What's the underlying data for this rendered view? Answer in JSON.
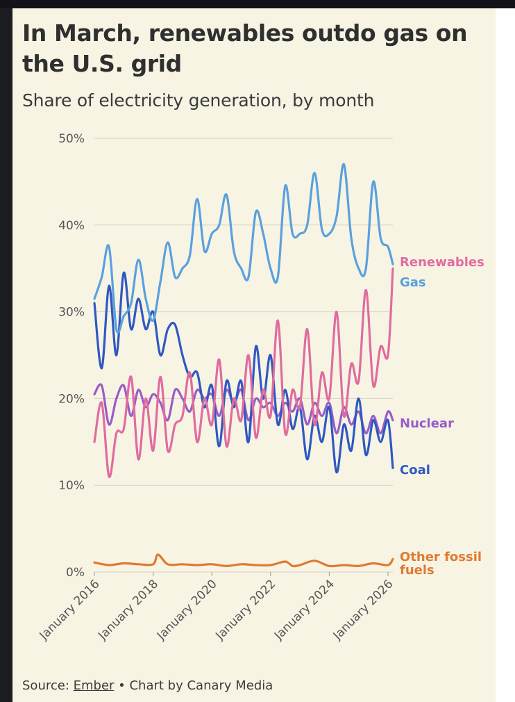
{
  "title": "In March, renewables outdo gas on the U.S. grid",
  "subtitle": "Share of electricity generation, by month",
  "source": {
    "prefix": "Source: ",
    "link": "Ember",
    "suffix": " • Chart by Canary Media"
  },
  "colors": {
    "background": "#f7f4e4",
    "grid": "#d4d2c4",
    "axis_text": "#555555",
    "Gas": "#5aa0de",
    "Renewables": "#e06c9f",
    "Nuclear": "#9a5cc6",
    "Coal": "#2f58c2",
    "Other fossil fuels": "#e07a30"
  },
  "chart_data": {
    "type": "line",
    "title": "In March, renewables outdo gas on the U.S. grid",
    "subtitle": "Share of electricity generation, by month",
    "xlabel": "",
    "ylabel": "",
    "x_ticks": [
      "January 2016",
      "January 2018",
      "January 2020",
      "January 2022",
      "January 2024",
      "January 2026"
    ],
    "y_ticks": [
      "0%",
      "10%",
      "20%",
      "30%",
      "40%",
      "50%"
    ],
    "ylim": [
      0,
      50
    ],
    "xlim": [
      "2016-01",
      "2026-03"
    ],
    "grid": true,
    "legend": "right-end labels",
    "series": [
      {
        "name": "Gas",
        "x": [
          "2016-01",
          "2016-04",
          "2016-07",
          "2016-10",
          "2017-01",
          "2017-04",
          "2017-07",
          "2017-10",
          "2018-01",
          "2018-04",
          "2018-07",
          "2018-10",
          "2019-01",
          "2019-04",
          "2019-07",
          "2019-10",
          "2020-01",
          "2020-04",
          "2020-07",
          "2020-10",
          "2021-01",
          "2021-04",
          "2021-07",
          "2021-10",
          "2022-01",
          "2022-04",
          "2022-07",
          "2022-10",
          "2023-01",
          "2023-04",
          "2023-07",
          "2023-10",
          "2024-01",
          "2024-04",
          "2024-07",
          "2024-10",
          "2025-01",
          "2025-04",
          "2025-07",
          "2025-10",
          "2026-01",
          "2026-03"
        ],
        "values": [
          31.5,
          34,
          37.5,
          28,
          29.5,
          31,
          36,
          31.5,
          29,
          33.5,
          38,
          34,
          35,
          36.5,
          43,
          37,
          39,
          40,
          43.5,
          37,
          35,
          34,
          41.5,
          39,
          35,
          34,
          44.5,
          39,
          39,
          40,
          46,
          39.5,
          39,
          41,
          47,
          38.5,
          35,
          35,
          45,
          38.5,
          37.5,
          35.5
        ]
      },
      {
        "name": "Renewables",
        "x": [
          "2016-01",
          "2016-04",
          "2016-07",
          "2016-10",
          "2017-01",
          "2017-04",
          "2017-07",
          "2017-10",
          "2018-01",
          "2018-04",
          "2018-07",
          "2018-10",
          "2019-01",
          "2019-04",
          "2019-07",
          "2019-10",
          "2020-01",
          "2020-04",
          "2020-07",
          "2020-10",
          "2021-01",
          "2021-04",
          "2021-07",
          "2021-10",
          "2022-01",
          "2022-04",
          "2022-07",
          "2022-10",
          "2023-01",
          "2023-04",
          "2023-07",
          "2023-10",
          "2024-01",
          "2024-04",
          "2024-07",
          "2024-10",
          "2025-01",
          "2025-04",
          "2025-07",
          "2025-10",
          "2026-01",
          "2026-03"
        ],
        "values": [
          15,
          19.5,
          11,
          16,
          16.5,
          22.5,
          13,
          20,
          14,
          22.5,
          14,
          17,
          18,
          23,
          15,
          20,
          17,
          24.5,
          14.5,
          20,
          17.5,
          25,
          15.5,
          21,
          18,
          29,
          16,
          21,
          19,
          28,
          17,
          23,
          20,
          30,
          18,
          24,
          22,
          32.5,
          21.5,
          26,
          25,
          35
        ]
      },
      {
        "name": "Nuclear",
        "x": [
          "2016-01",
          "2016-04",
          "2016-07",
          "2016-10",
          "2017-01",
          "2017-04",
          "2017-07",
          "2017-10",
          "2018-01",
          "2018-04",
          "2018-07",
          "2018-10",
          "2019-01",
          "2019-04",
          "2019-07",
          "2019-10",
          "2020-01",
          "2020-04",
          "2020-07",
          "2020-10",
          "2021-01",
          "2021-04",
          "2021-07",
          "2021-10",
          "2022-01",
          "2022-04",
          "2022-07",
          "2022-10",
          "2023-01",
          "2023-04",
          "2023-07",
          "2023-10",
          "2024-01",
          "2024-04",
          "2024-07",
          "2024-10",
          "2025-01",
          "2025-04",
          "2025-07",
          "2025-10",
          "2026-01",
          "2026-03"
        ],
        "values": [
          20.5,
          21.5,
          17,
          20,
          21.5,
          18,
          21,
          19,
          20.5,
          19.5,
          17.5,
          21,
          20,
          18.5,
          21,
          20,
          20.5,
          18,
          21,
          19.5,
          21,
          17.5,
          20,
          19,
          19.5,
          18,
          19.5,
          18.5,
          20,
          17,
          19.5,
          18,
          19.5,
          16,
          19,
          17,
          18.5,
          16,
          18,
          16,
          18.5,
          17.5
        ]
      },
      {
        "name": "Coal",
        "x": [
          "2016-01",
          "2016-04",
          "2016-07",
          "2016-10",
          "2017-01",
          "2017-04",
          "2017-07",
          "2017-10",
          "2018-01",
          "2018-04",
          "2018-07",
          "2018-10",
          "2019-01",
          "2019-04",
          "2019-07",
          "2019-10",
          "2020-01",
          "2020-04",
          "2020-07",
          "2020-10",
          "2021-01",
          "2021-04",
          "2021-07",
          "2021-10",
          "2022-01",
          "2022-04",
          "2022-07",
          "2022-10",
          "2023-01",
          "2023-04",
          "2023-07",
          "2023-10",
          "2024-01",
          "2024-04",
          "2024-07",
          "2024-10",
          "2025-01",
          "2025-04",
          "2025-07",
          "2025-10",
          "2026-01",
          "2026-03"
        ],
        "values": [
          31,
          23.5,
          33,
          25,
          34.5,
          28,
          31.5,
          28,
          30,
          25,
          28,
          28.5,
          25,
          22.5,
          23,
          19,
          21.5,
          14.5,
          22,
          19,
          22,
          15,
          26,
          20,
          25,
          17,
          21,
          16.5,
          19,
          13,
          18,
          15,
          19,
          11.5,
          17,
          14,
          20,
          13.5,
          17.5,
          15,
          17.5,
          12
        ]
      },
      {
        "name": "Other fossil fuels",
        "x": [
          "2016-01",
          "2016-07",
          "2017-01",
          "2017-07",
          "2018-01",
          "2018-03",
          "2018-07",
          "2019-01",
          "2019-07",
          "2020-01",
          "2020-07",
          "2021-01",
          "2021-07",
          "2022-01",
          "2022-07",
          "2022-10",
          "2023-01",
          "2023-07",
          "2024-01",
          "2024-07",
          "2025-01",
          "2025-07",
          "2026-01",
          "2026-03"
        ],
        "values": [
          1.1,
          0.8,
          1,
          0.9,
          0.9,
          2,
          0.9,
          0.9,
          0.8,
          0.9,
          0.7,
          0.9,
          0.8,
          0.8,
          1.2,
          0.7,
          0.8,
          1.3,
          0.7,
          0.8,
          0.7,
          1,
          0.8,
          1.5
        ]
      }
    ]
  }
}
